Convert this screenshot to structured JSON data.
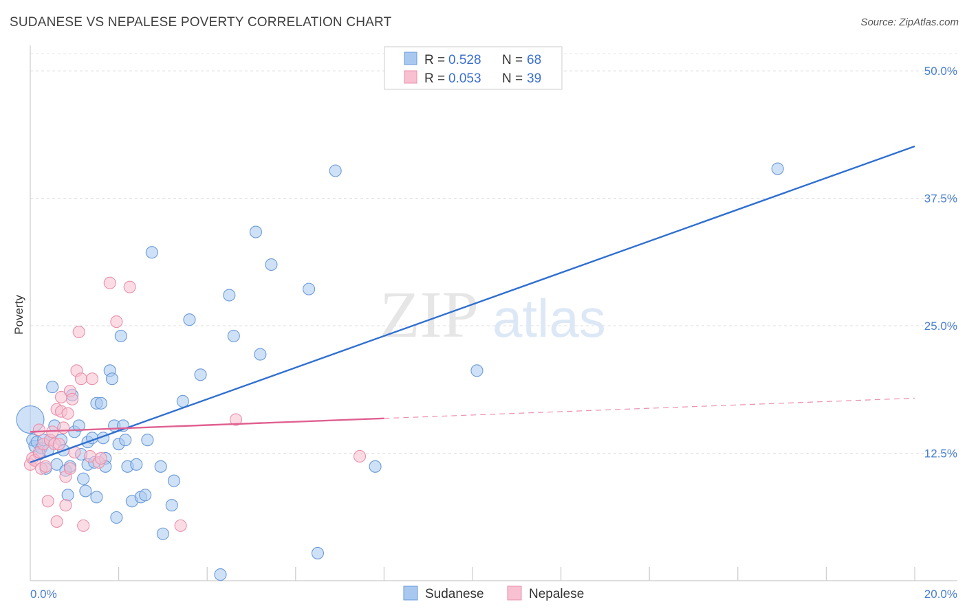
{
  "title": "SUDANESE VS NEPALESE POVERTY CORRELATION CHART",
  "source": "Source: ZipAtlas.com",
  "watermark": {
    "zip": "ZIP",
    "atlas": "atlas"
  },
  "legend": {
    "r_label": "R =",
    "n_label": "N =",
    "rows": [
      {
        "r": "0.528",
        "n": "68",
        "color": "#a8c8f0",
        "stroke": "#6a9ad8"
      },
      {
        "r": "0.053",
        "n": "39",
        "color": "#f8c0d0",
        "stroke": "#e890ac"
      }
    ]
  },
  "chart_data": {
    "type": "scatter",
    "title": "SUDANESE VS NEPALESE POVERTY CORRELATION CHART",
    "xlabel": "",
    "ylabel": "Poverty",
    "xlim": [
      0,
      20
    ],
    "ylim": [
      0,
      52.5
    ],
    "x_tick_labels": [
      "0.0%",
      "20.0%"
    ],
    "y_ticks": [
      12.5,
      25.0,
      37.5,
      50.0
    ],
    "y_tick_labels": [
      "12.5%",
      "25.0%",
      "37.5%",
      "50.0%"
    ],
    "grid": true,
    "series": [
      {
        "name": "Sudanese",
        "color": "#6a9ad8",
        "fill": "#a8c8f0",
        "trend": {
          "x": [
            0,
            20
          ],
          "y": [
            11.6,
            42.6
          ],
          "color": "#2f6fd0",
          "dashed_from": null
        },
        "points": [
          [
            0.0,
            15.8
          ],
          [
            0.05,
            13.8
          ],
          [
            0.1,
            13.2
          ],
          [
            0.15,
            13.6
          ],
          [
            0.2,
            12.4
          ],
          [
            0.25,
            13.0
          ],
          [
            0.3,
            13.8
          ],
          [
            0.35,
            11.0
          ],
          [
            0.4,
            12.8
          ],
          [
            0.45,
            13.8
          ],
          [
            0.5,
            19.0
          ],
          [
            0.55,
            15.2
          ],
          [
            0.6,
            11.4
          ],
          [
            0.7,
            13.8
          ],
          [
            0.75,
            12.8
          ],
          [
            0.8,
            10.8
          ],
          [
            0.85,
            8.4
          ],
          [
            0.9,
            11.2
          ],
          [
            0.95,
            18.2
          ],
          [
            1.0,
            14.6
          ],
          [
            1.1,
            15.2
          ],
          [
            1.15,
            12.4
          ],
          [
            1.2,
            10.0
          ],
          [
            1.25,
            8.8
          ],
          [
            1.3,
            11.4
          ],
          [
            1.3,
            13.6
          ],
          [
            1.4,
            14.0
          ],
          [
            1.45,
            11.6
          ],
          [
            1.5,
            17.4
          ],
          [
            1.5,
            8.2
          ],
          [
            1.6,
            17.4
          ],
          [
            1.65,
            14.0
          ],
          [
            1.7,
            12.0
          ],
          [
            1.7,
            11.2
          ],
          [
            1.8,
            20.6
          ],
          [
            1.85,
            19.8
          ],
          [
            1.9,
            15.2
          ],
          [
            1.95,
            6.2
          ],
          [
            2.0,
            13.4
          ],
          [
            2.05,
            24.0
          ],
          [
            2.1,
            15.2
          ],
          [
            2.15,
            13.8
          ],
          [
            2.2,
            11.2
          ],
          [
            2.3,
            7.8
          ],
          [
            2.4,
            11.4
          ],
          [
            2.5,
            8.2
          ],
          [
            2.6,
            8.4
          ],
          [
            2.65,
            13.8
          ],
          [
            2.75,
            32.2
          ],
          [
            2.95,
            11.2
          ],
          [
            3.0,
            4.6
          ],
          [
            3.2,
            7.4
          ],
          [
            3.25,
            9.8
          ],
          [
            3.45,
            17.6
          ],
          [
            3.6,
            25.6
          ],
          [
            3.85,
            20.2
          ],
          [
            4.3,
            0.6
          ],
          [
            4.5,
            28.0
          ],
          [
            4.6,
            24.0
          ],
          [
            5.1,
            34.2
          ],
          [
            5.2,
            22.2
          ],
          [
            5.45,
            31.0
          ],
          [
            6.3,
            28.6
          ],
          [
            6.5,
            2.7
          ],
          [
            6.9,
            40.2
          ],
          [
            7.8,
            11.2
          ],
          [
            10.1,
            20.6
          ],
          [
            16.9,
            40.4
          ]
        ]
      },
      {
        "name": "Nepalese",
        "color": "#e890ac",
        "fill": "#f8c0d0",
        "trend": {
          "x": [
            0,
            20
          ],
          "y": [
            14.6,
            17.9
          ],
          "color": "#e06090",
          "dashed_from": 8.0
        },
        "points": [
          [
            0.0,
            11.4
          ],
          [
            0.05,
            12.0
          ],
          [
            0.1,
            11.8
          ],
          [
            0.2,
            14.8
          ],
          [
            0.2,
            12.6
          ],
          [
            0.25,
            11.0
          ],
          [
            0.3,
            13.4
          ],
          [
            0.35,
            11.2
          ],
          [
            0.4,
            7.8
          ],
          [
            0.45,
            13.8
          ],
          [
            0.5,
            14.6
          ],
          [
            0.55,
            13.4
          ],
          [
            0.6,
            5.8
          ],
          [
            0.6,
            16.8
          ],
          [
            0.65,
            13.4
          ],
          [
            0.7,
            18.0
          ],
          [
            0.7,
            16.6
          ],
          [
            0.75,
            15.0
          ],
          [
            0.8,
            10.2
          ],
          [
            0.8,
            7.4
          ],
          [
            0.85,
            16.4
          ],
          [
            0.9,
            18.6
          ],
          [
            0.9,
            11.0
          ],
          [
            0.95,
            17.8
          ],
          [
            1.0,
            12.6
          ],
          [
            1.05,
            20.6
          ],
          [
            1.1,
            24.4
          ],
          [
            1.15,
            19.8
          ],
          [
            1.2,
            5.4
          ],
          [
            1.35,
            12.2
          ],
          [
            1.4,
            19.8
          ],
          [
            1.55,
            11.6
          ],
          [
            1.6,
            12.0
          ],
          [
            1.8,
            29.2
          ],
          [
            1.95,
            25.4
          ],
          [
            2.25,
            28.8
          ],
          [
            3.4,
            5.4
          ],
          [
            4.65,
            15.8
          ],
          [
            7.45,
            12.2
          ]
        ]
      }
    ]
  },
  "bottom_legend": [
    {
      "label": "Sudanese",
      "color": "#a8c8f0",
      "stroke": "#6a9ad8"
    },
    {
      "label": "Nepalese",
      "color": "#f8c0d0",
      "stroke": "#e890ac"
    }
  ]
}
